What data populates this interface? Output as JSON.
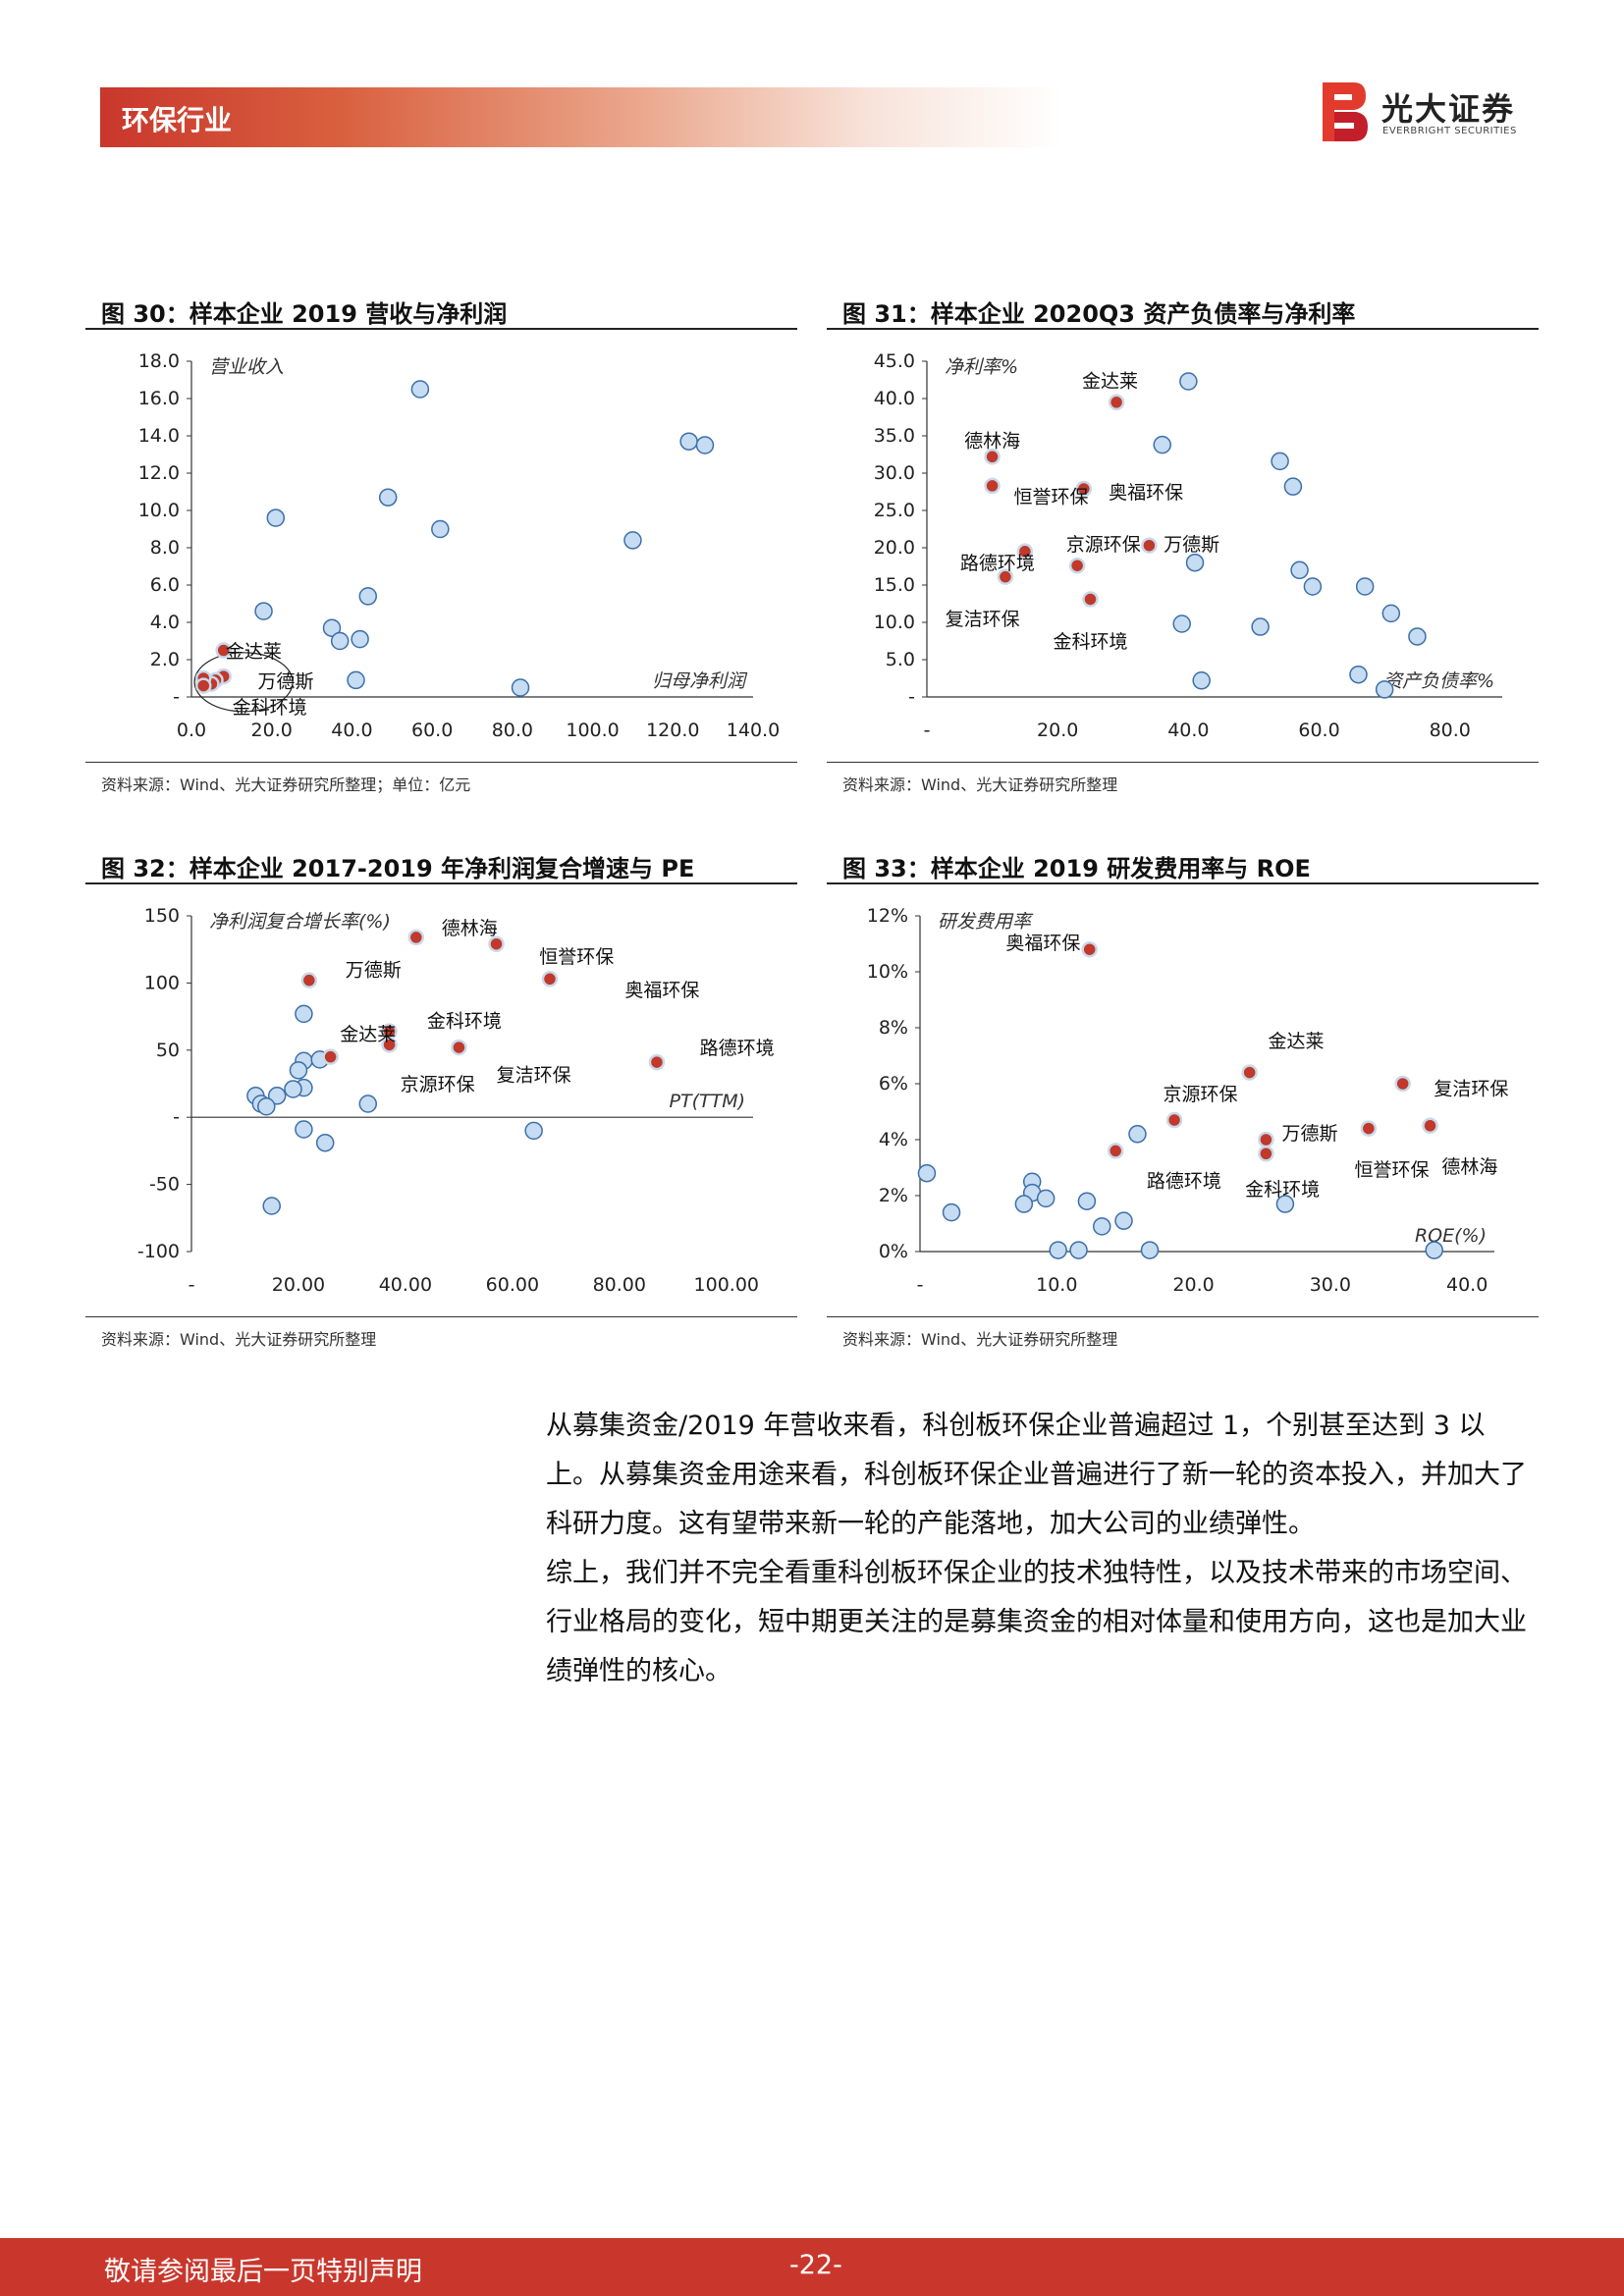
{
  "header": {
    "title": "环保行业"
  },
  "logo": {
    "name_cn": "光大证券",
    "name_en": "EVERBRIGHT SECURITIES"
  },
  "figures": [
    {
      "title": "图 30：样本企业 2019 营收与净利润",
      "source": "资料来源：Wind、光大证券研究所整理；单位：亿元"
    },
    {
      "title": "图 31：样本企业 2020Q3 资产负债率与净利率",
      "source": "资料来源：Wind、光大证券研究所整理"
    },
    {
      "title": "图 32：样本企业 2017-2019 年净利润复合增速与 PE",
      "source": "资料来源：Wind、光大证券研究所整理"
    },
    {
      "title": "图 33：样本企业 2019 研发费用率与 ROE",
      "source": "资料来源：Wind、光大证券研究所整理"
    }
  ],
  "chart_data": [
    {
      "type": "scatter",
      "xlabel": "归母净利润",
      "ylabel": "营业收入",
      "xlim": [
        0,
        140
      ],
      "ylim": [
        0,
        18
      ],
      "x_ticks": [
        "0.0",
        "20.0",
        "40.0",
        "60.0",
        "80.0",
        "100.0",
        "120.0",
        "140.0"
      ],
      "y_ticks": [
        "-",
        "2.0",
        "4.0",
        "6.0",
        "8.0",
        "10.0",
        "12.0",
        "14.0",
        "16.0",
        "18.0"
      ],
      "series": [
        {
          "name": "",
          "color": "#c5dcf2",
          "points": [
            [
              57,
              16.5
            ],
            [
              124,
              13.7
            ],
            [
              128,
              13.5
            ],
            [
              21,
              9.6
            ],
            [
              49,
              10.7
            ],
            [
              62,
              9.0
            ],
            [
              110,
              8.4
            ],
            [
              18,
              4.6
            ],
            [
              44,
              5.4
            ],
            [
              35,
              3.7
            ],
            [
              37,
              3.0
            ],
            [
              42,
              3.1
            ],
            [
              41,
              0.9
            ],
            [
              82,
              0.5
            ]
          ]
        },
        {
          "name": "",
          "color": "#c0392b",
          "points": [
            [
              8,
              2.5
            ],
            [
              8,
              1.1
            ],
            [
              6,
              0.9
            ],
            [
              5,
              0.7
            ],
            [
              3,
              1.0
            ],
            [
              3,
              0.6
            ]
          ]
        }
      ],
      "annotations": [
        "金达莱",
        "万德斯",
        "金科环境"
      ]
    },
    {
      "type": "scatter",
      "xlabel": "资产负债率%",
      "ylabel": "净利率%",
      "xlim": [
        0,
        88
      ],
      "ylim": [
        0,
        45
      ],
      "x_ticks": [
        "-",
        "20.0",
        "40.0",
        "60.0",
        "80.0"
      ],
      "y_ticks": [
        "-",
        "5.0",
        "10.0",
        "15.0",
        "20.0",
        "25.0",
        "30.0",
        "35.0",
        "40.0",
        "45.0"
      ],
      "series": [
        {
          "name": "",
          "color": "#c5dcf2",
          "points": [
            [
              40,
              42.3
            ],
            [
              36,
              33.8
            ],
            [
              54,
              31.6
            ],
            [
              56,
              28.2
            ],
            [
              41,
              18.0
            ],
            [
              57,
              17.0
            ],
            [
              59,
              14.8
            ],
            [
              67,
              14.8
            ],
            [
              71,
              11.2
            ],
            [
              75,
              8.1
            ],
            [
              39,
              9.8
            ],
            [
              51,
              9.4
            ],
            [
              42,
              2.2
            ],
            [
              66,
              3.0
            ],
            [
              70,
              1.0
            ]
          ]
        },
        {
          "name": "",
          "color": "#c0392b",
          "points": [
            [
              29,
              39.5
            ],
            [
              10,
              32.2
            ],
            [
              10,
              28.3
            ],
            [
              24,
              27.9
            ],
            [
              15,
              19.5
            ],
            [
              12,
              16.1
            ],
            [
              23,
              17.6
            ],
            [
              34,
              20.3
            ],
            [
              25,
              13.1
            ]
          ]
        }
      ],
      "annotations": [
        "金达莱",
        "德林海",
        "恒誉环保",
        "奥福环保",
        "京源环保",
        "万德斯",
        "路德环境",
        "复洁环保",
        "金科环境"
      ]
    },
    {
      "type": "scatter",
      "xlabel": "PT(TTM)",
      "ylabel": "净利润复合增长率(%)",
      "xlim": [
        0,
        105
      ],
      "ylim": [
        -100,
        150
      ],
      "x_ticks": [
        "-",
        "20.00",
        "40.00",
        "60.00",
        "80.00",
        "100.00"
      ],
      "y_ticks": [
        "-100",
        "-50",
        "-",
        "50",
        "100",
        "150"
      ],
      "series": [
        {
          "name": "",
          "color": "#c5dcf2",
          "points": [
            [
              21,
              77
            ],
            [
              21,
              42
            ],
            [
              24,
              43
            ],
            [
              21,
              22
            ],
            [
              19,
              21
            ],
            [
              20,
              35
            ],
            [
              16,
              16
            ],
            [
              12,
              16
            ],
            [
              13,
              10
            ],
            [
              14,
              8
            ],
            [
              21,
              -9
            ],
            [
              25,
              -19
            ],
            [
              33,
              10
            ],
            [
              64,
              -10
            ],
            [
              15,
              -66
            ]
          ]
        },
        {
          "name": "",
          "color": "#c0392b",
          "points": [
            [
              42,
              134
            ],
            [
              57,
              129
            ],
            [
              67,
              103
            ],
            [
              22,
              102
            ],
            [
              37,
              54
            ],
            [
              50,
              52
            ],
            [
              26,
              45
            ],
            [
              87,
              41
            ],
            [
              37,
              64
            ]
          ]
        }
      ],
      "annotations": [
        "德林海",
        "恒誉环保",
        "奥福环保",
        "万德斯",
        "金科环境",
        "金达莱",
        "京源环保",
        "复洁环保",
        "路德环境"
      ]
    },
    {
      "type": "scatter",
      "xlabel": "ROE(%)",
      "ylabel": "研发费用率",
      "xlim": [
        0,
        42
      ],
      "ylim": [
        0,
        12
      ],
      "x_ticks": [
        "-",
        "10.0",
        "20.0",
        "30.0",
        "40.0"
      ],
      "y_ticks": [
        "0%",
        "2%",
        "4%",
        "6%",
        "8%",
        "10%",
        "12%"
      ],
      "series": [
        {
          "name": "",
          "color": "#c5dcf2",
          "points": [
            [
              0.5,
              2.8
            ],
            [
              2.3,
              1.4
            ],
            [
              8.2,
              2.5
            ],
            [
              8.2,
              2.1
            ],
            [
              7.6,
              1.7
            ],
            [
              9.2,
              1.9
            ],
            [
              12.2,
              1.8
            ],
            [
              15.9,
              4.2
            ],
            [
              13.3,
              0.9
            ],
            [
              14.9,
              1.1
            ],
            [
              10.1,
              0.05
            ],
            [
              11.6,
              0.05
            ],
            [
              16.8,
              0.05
            ],
            [
              26.7,
              1.7
            ],
            [
              37.6,
              0.05
            ]
          ]
        },
        {
          "name": "",
          "color": "#c0392b",
          "points": [
            [
              12.4,
              10.8
            ],
            [
              24.1,
              6.4
            ],
            [
              35.3,
              6.0
            ],
            [
              37.3,
              4.5
            ],
            [
              32.8,
              4.4
            ],
            [
              18.6,
              4.7
            ],
            [
              25.3,
              4.0
            ],
            [
              25.3,
              3.5
            ],
            [
              14.3,
              3.6
            ]
          ]
        }
      ],
      "annotations": [
        "奥福环保",
        "金达莱",
        "复洁环保",
        "京源环保",
        "万德斯",
        "恒誉环保",
        "德林海",
        "路德环境",
        "金科环境"
      ]
    }
  ],
  "body": {
    "paragraphs": [
      "从募集资金/2019 年营收来看，科创板环保企业普遍超过 1，个别甚至达到 3 以上。从募集资金用途来看，科创板环保企业普遍进行了新一轮的资本投入，并加大了科研力度。这有望带来新一轮的产能落地，加大公司的业绩弹性。",
      "综上，我们并不完全看重科创板环保企业的技术独特性，以及技术带来的市场空间、行业格局的变化，短中期更关注的是募集资金的相对体量和使用方向，这也是加大业绩弹性的核心。"
    ]
  },
  "footer": {
    "disclaimer": "敬请参阅最后一页特别声明",
    "page": "-22-"
  }
}
